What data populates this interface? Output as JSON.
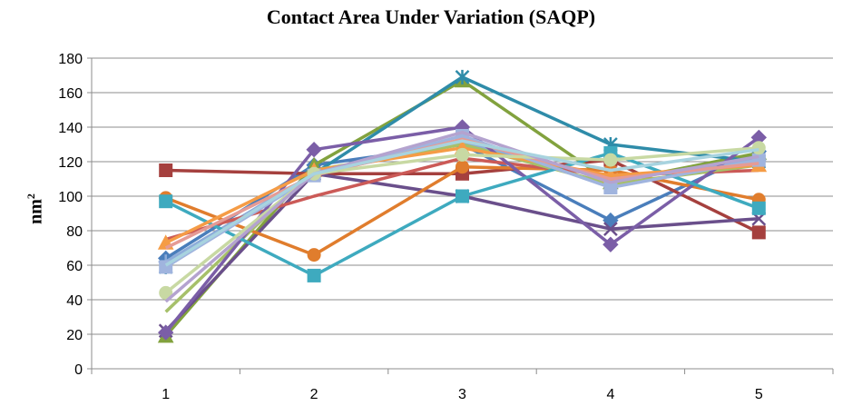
{
  "chart_data": {
    "type": "line",
    "title": "Contact Area Under Variation (SAQP)",
    "ylabel_base": "nm",
    "ylabel_sup": "2",
    "xlabel": "",
    "x": [
      1,
      2,
      3,
      4,
      5
    ],
    "ylim": [
      0,
      180
    ],
    "yticks": [
      0,
      20,
      40,
      60,
      80,
      100,
      120,
      140,
      160,
      180
    ],
    "grid": "horizontal",
    "legend": "none",
    "series": [
      {
        "color": "#4a7ebb",
        "marker": "diamond",
        "values": [
          64,
          118,
          130,
          86,
          126
        ]
      },
      {
        "color": "#a5403e",
        "marker": "square",
        "values": [
          115,
          113,
          113,
          121,
          79
        ]
      },
      {
        "color": "#82a23e",
        "marker": "triangle",
        "values": [
          19,
          118,
          167,
          108,
          125
        ]
      },
      {
        "color": "#6a4f8b",
        "marker": "x",
        "values": [
          22,
          113,
          100,
          81,
          87
        ]
      },
      {
        "color": "#2f8ca9",
        "marker": "star",
        "values": [
          59,
          113,
          169,
          130,
          120
        ]
      },
      {
        "color": "#e07d2d",
        "marker": "circle",
        "values": [
          99,
          66,
          117,
          115,
          98
        ]
      },
      {
        "color": "#8dacd9",
        "marker": "plus",
        "values": [
          62,
          113,
          131,
          110,
          121
        ]
      },
      {
        "color": "#cb5a57",
        "marker": "none",
        "values": [
          75,
          100,
          122,
          112,
          115
        ]
      },
      {
        "color": "#a6c06a",
        "marker": "none",
        "values": [
          33,
          115,
          130,
          107,
          118
        ]
      },
      {
        "color": "#7b5ea7",
        "marker": "diamond",
        "values": [
          21,
          127,
          140,
          72,
          134
        ]
      },
      {
        "color": "#3eaabf",
        "marker": "square",
        "values": [
          97,
          54,
          100,
          125,
          93
        ]
      },
      {
        "color": "#f59c46",
        "marker": "triangle",
        "values": [
          73,
          115,
          128,
          112,
          118
        ]
      },
      {
        "color": "#a0b4de",
        "marker": "square",
        "values": [
          59,
          112,
          135,
          105,
          121
        ]
      },
      {
        "color": "#e59b95",
        "marker": "none",
        "values": [
          70,
          112,
          133,
          110,
          119
        ]
      },
      {
        "color": "#c8d9a3",
        "marker": "circle",
        "values": [
          44,
          113,
          124,
          121,
          128
        ]
      },
      {
        "color": "#b4a3cf",
        "marker": "none",
        "values": [
          39,
          113,
          137,
          108,
          123
        ]
      },
      {
        "color": "#a8d3df",
        "marker": "none",
        "values": [
          60,
          113,
          132,
          115,
          127
        ]
      }
    ]
  }
}
